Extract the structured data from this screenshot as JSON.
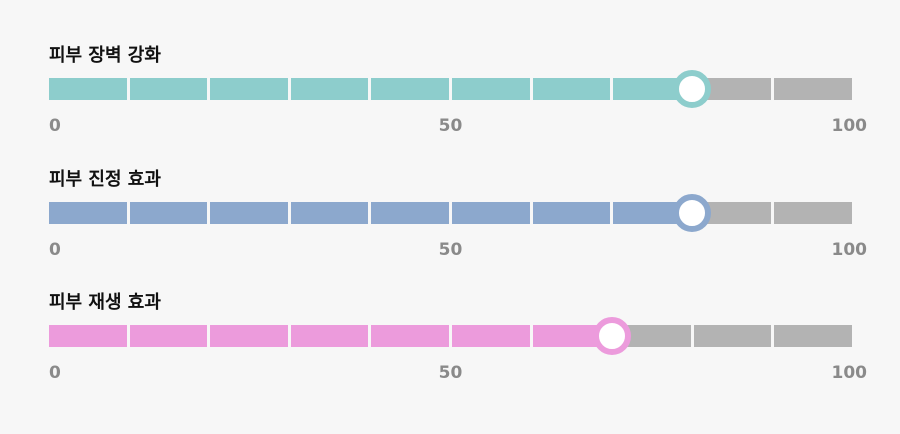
{
  "chart_data": {
    "type": "bar",
    "segments_per_track": 10,
    "inactive_color": "#b3b3b3",
    "series": [
      {
        "title": "피부 장벽 강화",
        "value": 80,
        "color": "#8dcdcc",
        "ticks": [
          "0",
          "50",
          "100"
        ]
      },
      {
        "title": "피부 진정 효과",
        "value": 80,
        "color": "#8ca8cd",
        "ticks": [
          "0",
          "50",
          "100"
        ]
      },
      {
        "title": "피부 재생 효과",
        "value": 70,
        "color": "#ec9bdc",
        "ticks": [
          "0",
          "50",
          "100"
        ]
      }
    ],
    "xlim": [
      0,
      100
    ]
  }
}
